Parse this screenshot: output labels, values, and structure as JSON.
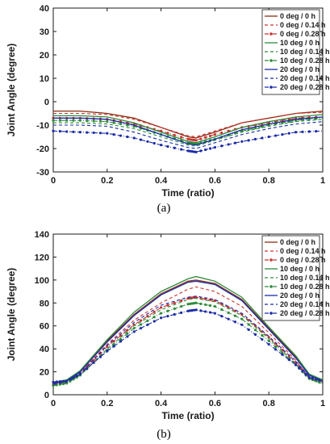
{
  "colors": {
    "brown": "#8B2E14",
    "red": "#CC3333",
    "green": "#2E8B3A",
    "blue": "#1A2BA8",
    "axis": "#1a1a1a"
  },
  "chart_data": [
    {
      "type": "line",
      "caption": "(a)",
      "xlabel": "Time (ratio)",
      "ylabel": "Joint Angle (degree)",
      "xlim": [
        0,
        1
      ],
      "ylim": [
        -30,
        40
      ],
      "xticks": [
        "0",
        "0.2",
        "0.4",
        "0.6",
        "0.8",
        "1"
      ],
      "yticks": [
        "-30",
        "-20",
        "-10",
        "0",
        "10",
        "20",
        "30",
        "40"
      ],
      "legend_position": "top-right",
      "series": [
        {
          "name": "0 deg / 0 h",
          "color": "brown",
          "style": "solid",
          "x": [
            0,
            0.1,
            0.2,
            0.3,
            0.4,
            0.5,
            0.53,
            0.6,
            0.7,
            0.8,
            0.9,
            1.0
          ],
          "y": [
            -4,
            -4,
            -5,
            -7,
            -11,
            -15,
            -15.5,
            -13,
            -9,
            -7,
            -5,
            -4
          ]
        },
        {
          "name": "0 deg / 0.14 h",
          "color": "red",
          "style": "dashed",
          "x": [
            0,
            0.1,
            0.2,
            0.3,
            0.4,
            0.5,
            0.53,
            0.6,
            0.7,
            0.8,
            0.9,
            1.0
          ],
          "y": [
            -5,
            -5,
            -5.5,
            -7.5,
            -11,
            -14.5,
            -15,
            -12.5,
            -9,
            -7,
            -5,
            -4.5
          ]
        },
        {
          "name": "0 deg / 0.28 h",
          "color": "red",
          "style": "dash-dot-marker",
          "x": [
            0,
            0.1,
            0.2,
            0.3,
            0.4,
            0.5,
            0.53,
            0.6,
            0.7,
            0.8,
            0.9,
            1.0
          ],
          "y": [
            -7,
            -7,
            -7.5,
            -9.5,
            -12.5,
            -16,
            -16.5,
            -14,
            -11,
            -9,
            -7,
            -6.5
          ]
        },
        {
          "name": "10 deg / 0 h",
          "color": "green",
          "style": "solid",
          "x": [
            0,
            0.1,
            0.2,
            0.3,
            0.4,
            0.5,
            0.53,
            0.6,
            0.7,
            0.8,
            0.9,
            1.0
          ],
          "y": [
            -6,
            -6,
            -6.5,
            -9,
            -13,
            -17,
            -17.5,
            -15,
            -11,
            -8.5,
            -6.5,
            -5.5
          ]
        },
        {
          "name": "10 deg / 0.14 h",
          "color": "green",
          "style": "dashed",
          "x": [
            0,
            0.1,
            0.2,
            0.3,
            0.4,
            0.5,
            0.53,
            0.6,
            0.7,
            0.8,
            0.9,
            1.0
          ],
          "y": [
            -9,
            -9,
            -9.5,
            -11.5,
            -15,
            -18.5,
            -19,
            -16.5,
            -13,
            -10.5,
            -8.5,
            -7.5
          ]
        },
        {
          "name": "10 deg / 0.28 h",
          "color": "green",
          "style": "dash-dot-marker",
          "x": [
            0,
            0.1,
            0.2,
            0.3,
            0.4,
            0.5,
            0.53,
            0.6,
            0.7,
            0.8,
            0.9,
            1.0
          ],
          "y": [
            -8,
            -8,
            -8.5,
            -10.5,
            -14,
            -17.5,
            -18,
            -16,
            -12.5,
            -10,
            -8,
            -7
          ]
        },
        {
          "name": "20 deg / 0 h",
          "color": "blue",
          "style": "solid",
          "x": [
            0,
            0.1,
            0.2,
            0.3,
            0.4,
            0.5,
            0.53,
            0.6,
            0.7,
            0.8,
            0.9,
            1.0
          ],
          "y": [
            -7,
            -7,
            -7.5,
            -10,
            -14,
            -18,
            -18.5,
            -16,
            -12,
            -9.5,
            -7.5,
            -6.5
          ]
        },
        {
          "name": "20 deg / 0.14 h",
          "color": "blue",
          "style": "dashed",
          "x": [
            0,
            0.1,
            0.2,
            0.3,
            0.4,
            0.5,
            0.53,
            0.6,
            0.7,
            0.8,
            0.9,
            1.0
          ],
          "y": [
            -10,
            -10,
            -10.5,
            -13,
            -16.5,
            -19.5,
            -20,
            -17.5,
            -14,
            -11.5,
            -9.5,
            -8.5
          ]
        },
        {
          "name": "20 deg / 0.28 h",
          "color": "blue",
          "style": "dash-dot-marker",
          "x": [
            0,
            0.1,
            0.2,
            0.3,
            0.4,
            0.5,
            0.53,
            0.6,
            0.7,
            0.8,
            0.9,
            1.0
          ],
          "y": [
            -12.5,
            -13,
            -13.5,
            -15.5,
            -18.5,
            -21,
            -21.5,
            -19.5,
            -17,
            -15,
            -13,
            -12.5
          ]
        }
      ]
    },
    {
      "type": "line",
      "caption": "(b)",
      "xlabel": "Time (ratio)",
      "ylabel": "Joint Angle (degree)",
      "xlim": [
        0,
        1
      ],
      "ylim": [
        0,
        140
      ],
      "xticks": [
        "0",
        "0.2",
        "0.4",
        "0.6",
        "0.8",
        "1"
      ],
      "yticks": [
        "0",
        "20",
        "40",
        "60",
        "80",
        "100",
        "120",
        "140"
      ],
      "legend_position": "top-right",
      "series": [
        {
          "name": "0 deg / 0 h",
          "color": "brown",
          "style": "solid",
          "x": [
            0,
            0.05,
            0.1,
            0.2,
            0.3,
            0.4,
            0.5,
            0.53,
            0.6,
            0.7,
            0.8,
            0.9,
            0.95,
            1.0
          ],
          "y": [
            10,
            12,
            20,
            47,
            70,
            88,
            99,
            100,
            97,
            83,
            58,
            33,
            17,
            12
          ]
        },
        {
          "name": "0 deg / 0.14 h",
          "color": "red",
          "style": "dashed",
          "x": [
            0,
            0.05,
            0.1,
            0.2,
            0.3,
            0.4,
            0.5,
            0.53,
            0.6,
            0.7,
            0.8,
            0.9,
            0.95,
            1.0
          ],
          "y": [
            9,
            11,
            19,
            44,
            65,
            80,
            92,
            94,
            90,
            77,
            54,
            30,
            15,
            10
          ]
        },
        {
          "name": "0 deg / 0.28 h",
          "color": "red",
          "style": "dash-dot-marker",
          "x": [
            0,
            0.05,
            0.1,
            0.2,
            0.3,
            0.4,
            0.5,
            0.53,
            0.6,
            0.7,
            0.8,
            0.9,
            0.95,
            1.0
          ],
          "y": [
            9,
            11,
            18,
            42,
            61,
            76,
            84,
            85,
            82,
            70,
            50,
            28,
            15,
            11
          ]
        },
        {
          "name": "10 deg / 0 h",
          "color": "green",
          "style": "solid",
          "x": [
            0,
            0.05,
            0.1,
            0.2,
            0.3,
            0.4,
            0.5,
            0.53,
            0.6,
            0.7,
            0.8,
            0.9,
            0.95,
            1.0
          ],
          "y": [
            11,
            13,
            21,
            48,
            72,
            90,
            101,
            103,
            99,
            85,
            59,
            34,
            18,
            13
          ]
        },
        {
          "name": "10 deg / 0.14 h",
          "color": "green",
          "style": "dashed",
          "x": [
            0,
            0.05,
            0.1,
            0.2,
            0.3,
            0.4,
            0.5,
            0.53,
            0.6,
            0.7,
            0.8,
            0.9,
            0.95,
            1.0
          ],
          "y": [
            8,
            10,
            17,
            40,
            60,
            74,
            83,
            84,
            81,
            69,
            49,
            27,
            14,
            9
          ]
        },
        {
          "name": "10 deg / 0.28 h",
          "color": "green",
          "style": "dash-dot-marker",
          "x": [
            0,
            0.05,
            0.1,
            0.2,
            0.3,
            0.4,
            0.5,
            0.53,
            0.6,
            0.7,
            0.8,
            0.9,
            0.95,
            1.0
          ],
          "y": [
            8,
            10,
            17,
            39,
            58,
            71,
            79,
            80,
            77,
            66,
            47,
            26,
            14,
            10
          ]
        },
        {
          "name": "20 deg / 0 h",
          "color": "blue",
          "style": "solid",
          "x": [
            0,
            0.05,
            0.1,
            0.2,
            0.3,
            0.4,
            0.5,
            0.53,
            0.6,
            0.7,
            0.8,
            0.9,
            0.95,
            1.0
          ],
          "y": [
            10,
            12,
            20,
            46,
            69,
            87,
            98,
            99,
            96,
            82,
            57,
            32,
            17,
            12
          ]
        },
        {
          "name": "20 deg / 0.14 h",
          "color": "blue",
          "style": "dashed",
          "x": [
            0,
            0.05,
            0.1,
            0.2,
            0.3,
            0.4,
            0.5,
            0.53,
            0.6,
            0.7,
            0.8,
            0.9,
            0.95,
            1.0
          ],
          "y": [
            9,
            11,
            18,
            43,
            63,
            78,
            85,
            86,
            83,
            71,
            51,
            29,
            16,
            11
          ]
        },
        {
          "name": "20 deg / 0.28 h",
          "color": "blue",
          "style": "dash-dot-marker",
          "x": [
            0,
            0.05,
            0.1,
            0.2,
            0.3,
            0.4,
            0.5,
            0.53,
            0.6,
            0.7,
            0.8,
            0.9,
            0.95,
            1.0
          ],
          "y": [
            11,
            12,
            18,
            38,
            55,
            67,
            73,
            74,
            71,
            61,
            44,
            26,
            15,
            12
          ]
        }
      ]
    }
  ]
}
